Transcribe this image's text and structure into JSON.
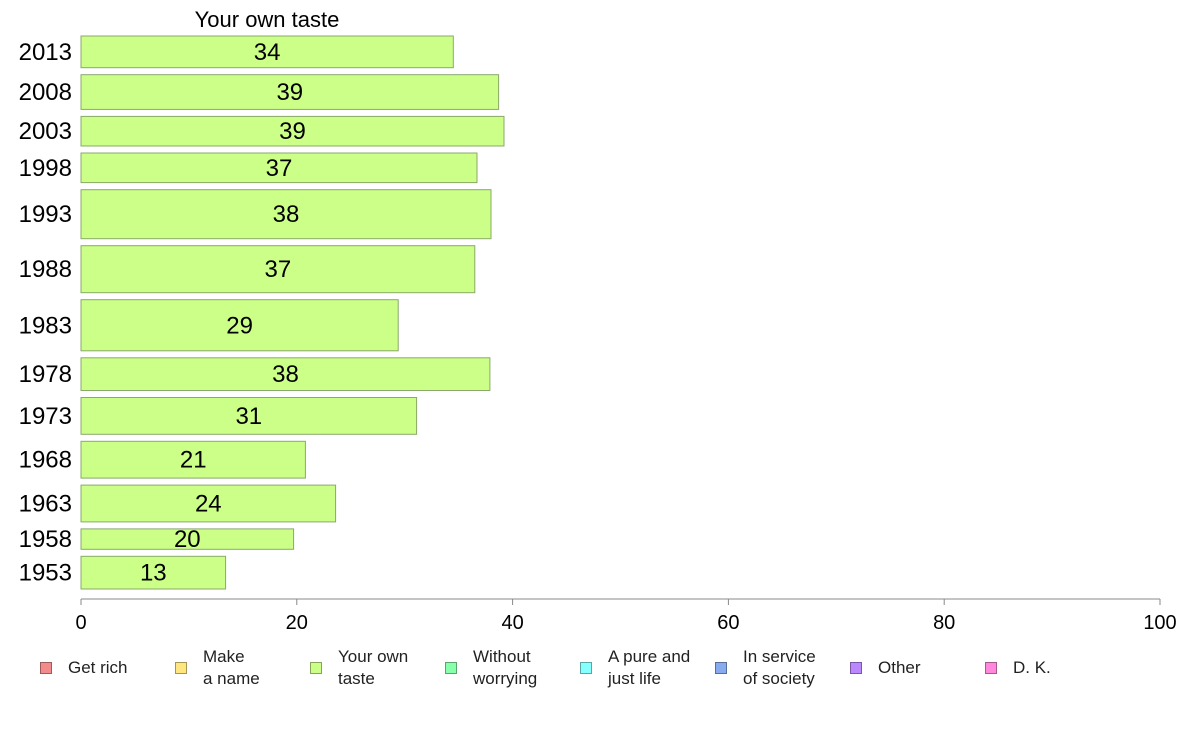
{
  "chart_data": {
    "type": "bar",
    "orientation": "horizontal",
    "title": "Your own taste",
    "categories": [
      "2013",
      "2008",
      "2003",
      "1998",
      "1993",
      "1988",
      "1983",
      "1978",
      "1973",
      "1968",
      "1963",
      "1958",
      "1953"
    ],
    "values": [
      34,
      39,
      39,
      37,
      38,
      37,
      29,
      38,
      31,
      21,
      24,
      20,
      13
    ],
    "bar_values_precise": [
      34.5,
      38.7,
      39.2,
      36.7,
      38.0,
      36.5,
      29.4,
      37.9,
      31.1,
      20.8,
      23.6,
      19.7,
      13.4
    ],
    "relative_bar_heights": [
      31,
      34,
      29,
      29,
      48,
      46,
      50,
      32,
      36,
      36,
      36,
      20,
      32
    ],
    "xlim": [
      0,
      100
    ],
    "xticks": [
      "0",
      "20",
      "40",
      "60",
      "80",
      "100"
    ],
    "xlabel": "",
    "ylabel": "",
    "bar_color": "#ccff88",
    "bar_border": "#8aa86a",
    "grid": false,
    "legend_position": "bottom"
  },
  "legend": [
    {
      "label": "Get rich",
      "color": "#f28c8c"
    },
    {
      "label": "Make\na name",
      "color": "#ffe680"
    },
    {
      "label": "Your own\ntaste",
      "color": "#ccff88"
    },
    {
      "label": "Without\nworrying",
      "color": "#88ffaa"
    },
    {
      "label": "A pure and\njust life",
      "color": "#88ffff"
    },
    {
      "label": "In service\nof society",
      "color": "#88aaee"
    },
    {
      "label": "Other",
      "color": "#bb88ff"
    },
    {
      "label": "D. K.",
      "color": "#ff88dd"
    }
  ]
}
